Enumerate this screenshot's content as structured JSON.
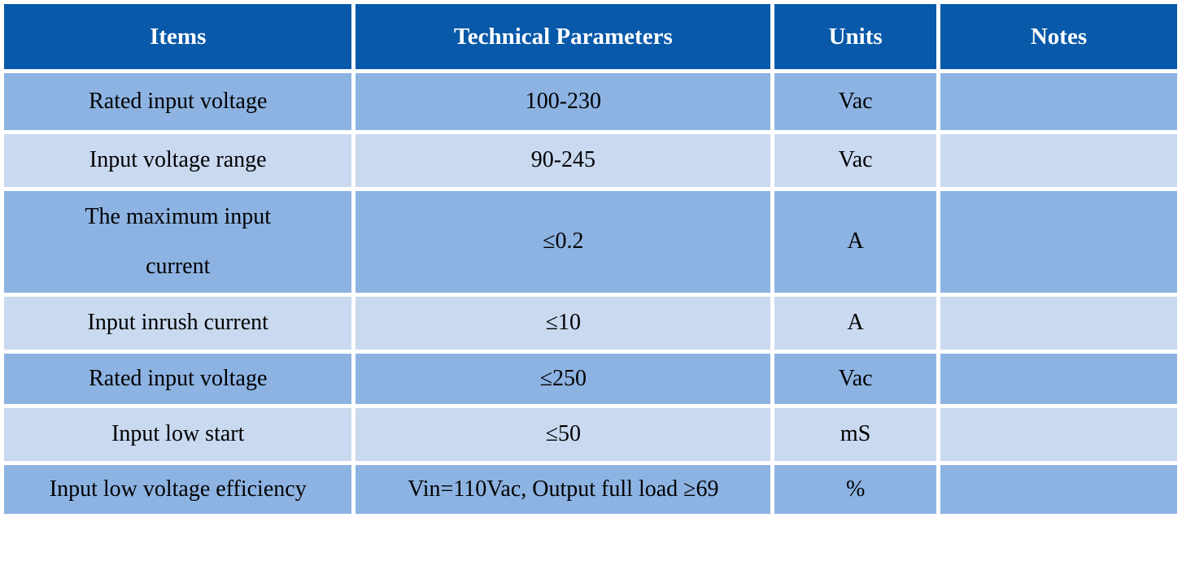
{
  "table": {
    "columns": [
      {
        "label": "Items"
      },
      {
        "label": "Technical Parameters"
      },
      {
        "label": "Units"
      },
      {
        "label": "Notes"
      }
    ],
    "rows": [
      {
        "item": "Rated input voltage",
        "parameter": "100-230",
        "unit": "Vac",
        "note": ""
      },
      {
        "item": "Input voltage range",
        "parameter": "90-245",
        "unit": "Vac",
        "note": ""
      },
      {
        "item": "The maximum input\ncurrent",
        "parameter": "≤0.2",
        "unit": "A",
        "note": ""
      },
      {
        "item": "Input inrush current",
        "parameter": "≤10",
        "unit": "A",
        "note": ""
      },
      {
        "item": "Rated input voltage",
        "parameter": "≤250",
        "unit": "Vac",
        "note": ""
      },
      {
        "item": "Input low start",
        "parameter": "≤50",
        "unit": "mS",
        "note": ""
      },
      {
        "item": "Input low voltage efficiency",
        "parameter": "Vin=110Vac, Output full load ≥69",
        "unit": "%",
        "note": ""
      }
    ],
    "colors": {
      "header_bg": "#0859A9",
      "header_text": "#FFFFFF",
      "row_medium": "#8DB3E2",
      "row_light": "#C9D9F0",
      "body_text": "#000000",
      "grid": "#FFFFFF"
    }
  }
}
